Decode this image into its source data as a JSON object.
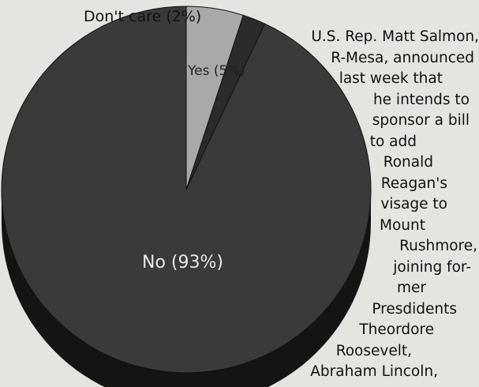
{
  "chart_data": {
    "type": "pie",
    "categories": [
      "Yes",
      "Don't care",
      "No"
    ],
    "values": [
      5,
      2,
      93
    ],
    "labels": [
      "Yes (5%)",
      "Don't care (2%)",
      "No (93%)"
    ],
    "colors": [
      "#a9a9a9",
      "#2b2b2b",
      "#3a3a3a"
    ],
    "style": "3d-tilted",
    "title": "",
    "legend": "none"
  },
  "caption": {
    "lines": [
      "U.S. Rep. Matt Salmon,",
      "R-Mesa, announced",
      "last week that",
      "he intends to",
      "sponsor a bill",
      "to add",
      "Ronald",
      "Reagan's",
      "visage to",
      "Mount",
      "Rushmore,",
      "joining for-",
      "mer",
      "Presdidents",
      "Theordore",
      "Roosevelt,",
      "Abraham Lincoln,"
    ]
  }
}
